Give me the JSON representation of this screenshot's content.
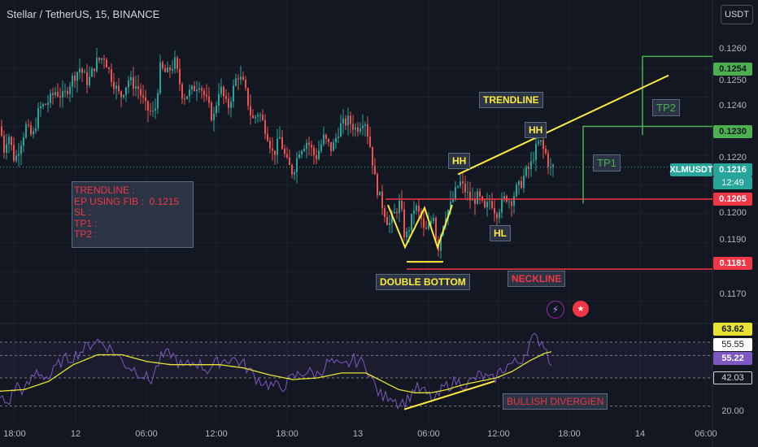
{
  "header": {
    "title": "Stellar / TetherUS, 15, BINANCE",
    "currency_button": "USDT"
  },
  "info_box": {
    "lines": [
      "TRENDLINE :",
      "EP USING FIB :  0.1215",
      "SL :",
      "TP1 :",
      "TP2 :"
    ]
  },
  "annotations": {
    "trendline": "TRENDLINE",
    "hh1": "HH",
    "hh2": "HH",
    "hl": "HL",
    "double_bottom": "DOUBLE BOTTOM",
    "neckline": "NECKLINE",
    "tp1": "TP1",
    "tp2": "TP2",
    "bullish_divergence": "BULLISH DIVERGIEN"
  },
  "price_axis": {
    "ticks": [
      "0.1260",
      "0.1250",
      "0.1240",
      "0.1230",
      "0.1220",
      "0.1210",
      "0.1200",
      "0.1190",
      "0.1180",
      "0.1170"
    ],
    "tags": {
      "tp2": "0.1254",
      "tp1": "0.1230",
      "symbol": "XLMUSDT",
      "last": "0.1216",
      "countdown": "12:49",
      "neck": "0.1205",
      "sl": "0.1181"
    }
  },
  "rsi_axis": {
    "tags": {
      "upper": "63.62",
      "mid": "55.55",
      "rsi": "55.22",
      "ma": "42.03"
    },
    "bottom_tick": "20.00"
  },
  "time_axis": [
    "18:00",
    "12",
    "06:00",
    "12:00",
    "18:00",
    "13",
    "06:00",
    "12:00",
    "18:00",
    "14",
    "06:00"
  ],
  "colors": {
    "up": "#26a69a",
    "down": "#ef5350",
    "annotation_yellow": "#ffeb3b",
    "green_line": "#4caf50",
    "red_line": "#f23645",
    "rsi": "#7e57c2",
    "rsi_ma": "#e8e230"
  },
  "chart_data": {
    "type": "candlestick",
    "symbol": "XLMUSDT",
    "interval": "15",
    "ylim": [
      0.1164,
      0.1265
    ],
    "close_path": [
      [
        0,
        0.123
      ],
      [
        5,
        0.1222
      ],
      [
        10,
        0.1228
      ],
      [
        18,
        0.1218
      ],
      [
        25,
        0.1224
      ],
      [
        32,
        0.123
      ],
      [
        40,
        0.1226
      ],
      [
        48,
        0.1236
      ],
      [
        58,
        0.1238
      ],
      [
        68,
        0.1242
      ],
      [
        78,
        0.124
      ],
      [
        88,
        0.1246
      ],
      [
        98,
        0.125
      ],
      [
        108,
        0.1245
      ],
      [
        118,
        0.1252
      ],
      [
        128,
        0.1254
      ],
      [
        138,
        0.1246
      ],
      [
        148,
        0.124
      ],
      [
        158,
        0.1246
      ],
      [
        170,
        0.1243
      ],
      [
        180,
        0.1236
      ],
      [
        190,
        0.1234
      ],
      [
        197,
        0.125
      ],
      [
        205,
        0.1248
      ],
      [
        215,
        0.1252
      ],
      [
        225,
        0.124
      ],
      [
        235,
        0.1242
      ],
      [
        245,
        0.1245
      ],
      [
        255,
        0.1238
      ],
      [
        262,
        0.1232
      ],
      [
        270,
        0.1244
      ],
      [
        280,
        0.1236
      ],
      [
        292,
        0.1248
      ],
      [
        300,
        0.1244
      ],
      [
        310,
        0.1232
      ],
      [
        318,
        0.1235
      ],
      [
        328,
        0.1228
      ],
      [
        336,
        0.122
      ],
      [
        344,
        0.1226
      ],
      [
        352,
        0.1218
      ],
      [
        360,
        0.1214
      ],
      [
        368,
        0.1222
      ],
      [
        378,
        0.1225
      ],
      [
        388,
        0.1219
      ],
      [
        398,
        0.1226
      ],
      [
        408,
        0.1222
      ],
      [
        418,
        0.123
      ],
      [
        428,
        0.1232
      ],
      [
        438,
        0.1229
      ],
      [
        448,
        0.1233
      ],
      [
        456,
        0.1222
      ],
      [
        462,
        0.121
      ],
      [
        470,
        0.1203
      ],
      [
        478,
        0.1196
      ],
      [
        485,
        0.12
      ],
      [
        492,
        0.1204
      ],
      [
        498,
        0.1191
      ],
      [
        505,
        0.1197
      ],
      [
        510,
        0.1203
      ],
      [
        518,
        0.1198
      ],
      [
        522,
        0.1193
      ],
      [
        528,
        0.1196
      ],
      [
        533,
        0.12
      ],
      [
        538,
        0.1187
      ],
      [
        543,
        0.1195
      ],
      [
        548,
        0.12
      ],
      [
        553,
        0.1202
      ],
      [
        558,
        0.1206
      ],
      [
        565,
        0.1211
      ],
      [
        572,
        0.1208
      ],
      [
        580,
        0.1204
      ],
      [
        588,
        0.1206
      ],
      [
        596,
        0.1201
      ],
      [
        603,
        0.1205
      ],
      [
        610,
        0.12
      ],
      [
        616,
        0.1203
      ],
      [
        622,
        0.1206
      ],
      [
        628,
        0.1204
      ],
      [
        634,
        0.1208
      ],
      [
        640,
        0.121
      ],
      [
        646,
        0.1214
      ],
      [
        652,
        0.1216
      ],
      [
        656,
        0.122
      ],
      [
        660,
        0.1223
      ],
      [
        664,
        0.1225
      ],
      [
        668,
        0.1222
      ],
      [
        672,
        0.122
      ],
      [
        676,
        0.1215
      ],
      [
        680,
        0.1216
      ]
    ],
    "levels": {
      "tp2": 0.1254,
      "tp1": 0.123,
      "last": 0.1216,
      "neckline": 0.1205,
      "sl": 0.1181
    },
    "rsi_panel": {
      "ylim": [
        15,
        70
      ],
      "reference_lines": [
        63.62,
        55.55,
        42.03
      ],
      "rsi_last": 55.22,
      "rsi_path": [
        [
          0,
          30
        ],
        [
          10,
          26
        ],
        [
          20,
          38
        ],
        [
          30,
          34
        ],
        [
          45,
          46
        ],
        [
          60,
          42
        ],
        [
          75,
          52
        ],
        [
          90,
          55
        ],
        [
          105,
          60
        ],
        [
          118,
          65
        ],
        [
          130,
          62
        ],
        [
          140,
          58
        ],
        [
          155,
          50
        ],
        [
          170,
          46
        ],
        [
          185,
          40
        ],
        [
          198,
          54
        ],
        [
          210,
          57
        ],
        [
          225,
          48
        ],
        [
          240,
          52
        ],
        [
          255,
          47
        ],
        [
          270,
          52
        ],
        [
          285,
          54
        ],
        [
          300,
          50
        ],
        [
          315,
          42
        ],
        [
          330,
          38
        ],
        [
          345,
          36
        ],
        [
          360,
          42
        ],
        [
          375,
          46
        ],
        [
          390,
          44
        ],
        [
          405,
          52
        ],
        [
          420,
          48
        ],
        [
          435,
          53
        ],
        [
          450,
          50
        ],
        [
          462,
          36
        ],
        [
          470,
          30
        ],
        [
          480,
          32
        ],
        [
          490,
          27
        ],
        [
          500,
          28
        ],
        [
          510,
          36
        ],
        [
          520,
          34
        ],
        [
          535,
          28
        ],
        [
          545,
          36
        ],
        [
          560,
          40
        ],
        [
          575,
          38
        ],
        [
          590,
          44
        ],
        [
          605,
          40
        ],
        [
          615,
          46
        ],
        [
          625,
          50
        ],
        [
          640,
          52
        ],
        [
          655,
          66
        ],
        [
          668,
          64
        ],
        [
          675,
          54
        ],
        [
          680,
          52
        ]
      ],
      "ma_path": [
        [
          0,
          34
        ],
        [
          30,
          35
        ],
        [
          60,
          40
        ],
        [
          90,
          50
        ],
        [
          120,
          56
        ],
        [
          150,
          56
        ],
        [
          180,
          52
        ],
        [
          210,
          50
        ],
        [
          240,
          50
        ],
        [
          270,
          50
        ],
        [
          300,
          48
        ],
        [
          330,
          44
        ],
        [
          360,
          41
        ],
        [
          390,
          42
        ],
        [
          420,
          45
        ],
        [
          450,
          45
        ],
        [
          470,
          40
        ],
        [
          490,
          35
        ],
        [
          510,
          33
        ],
        [
          530,
          33
        ],
        [
          550,
          35
        ],
        [
          570,
          38
        ],
        [
          590,
          40
        ],
        [
          610,
          42
        ],
        [
          630,
          46
        ],
        [
          650,
          52
        ],
        [
          670,
          57
        ],
        [
          680,
          58
        ]
      ]
    }
  }
}
